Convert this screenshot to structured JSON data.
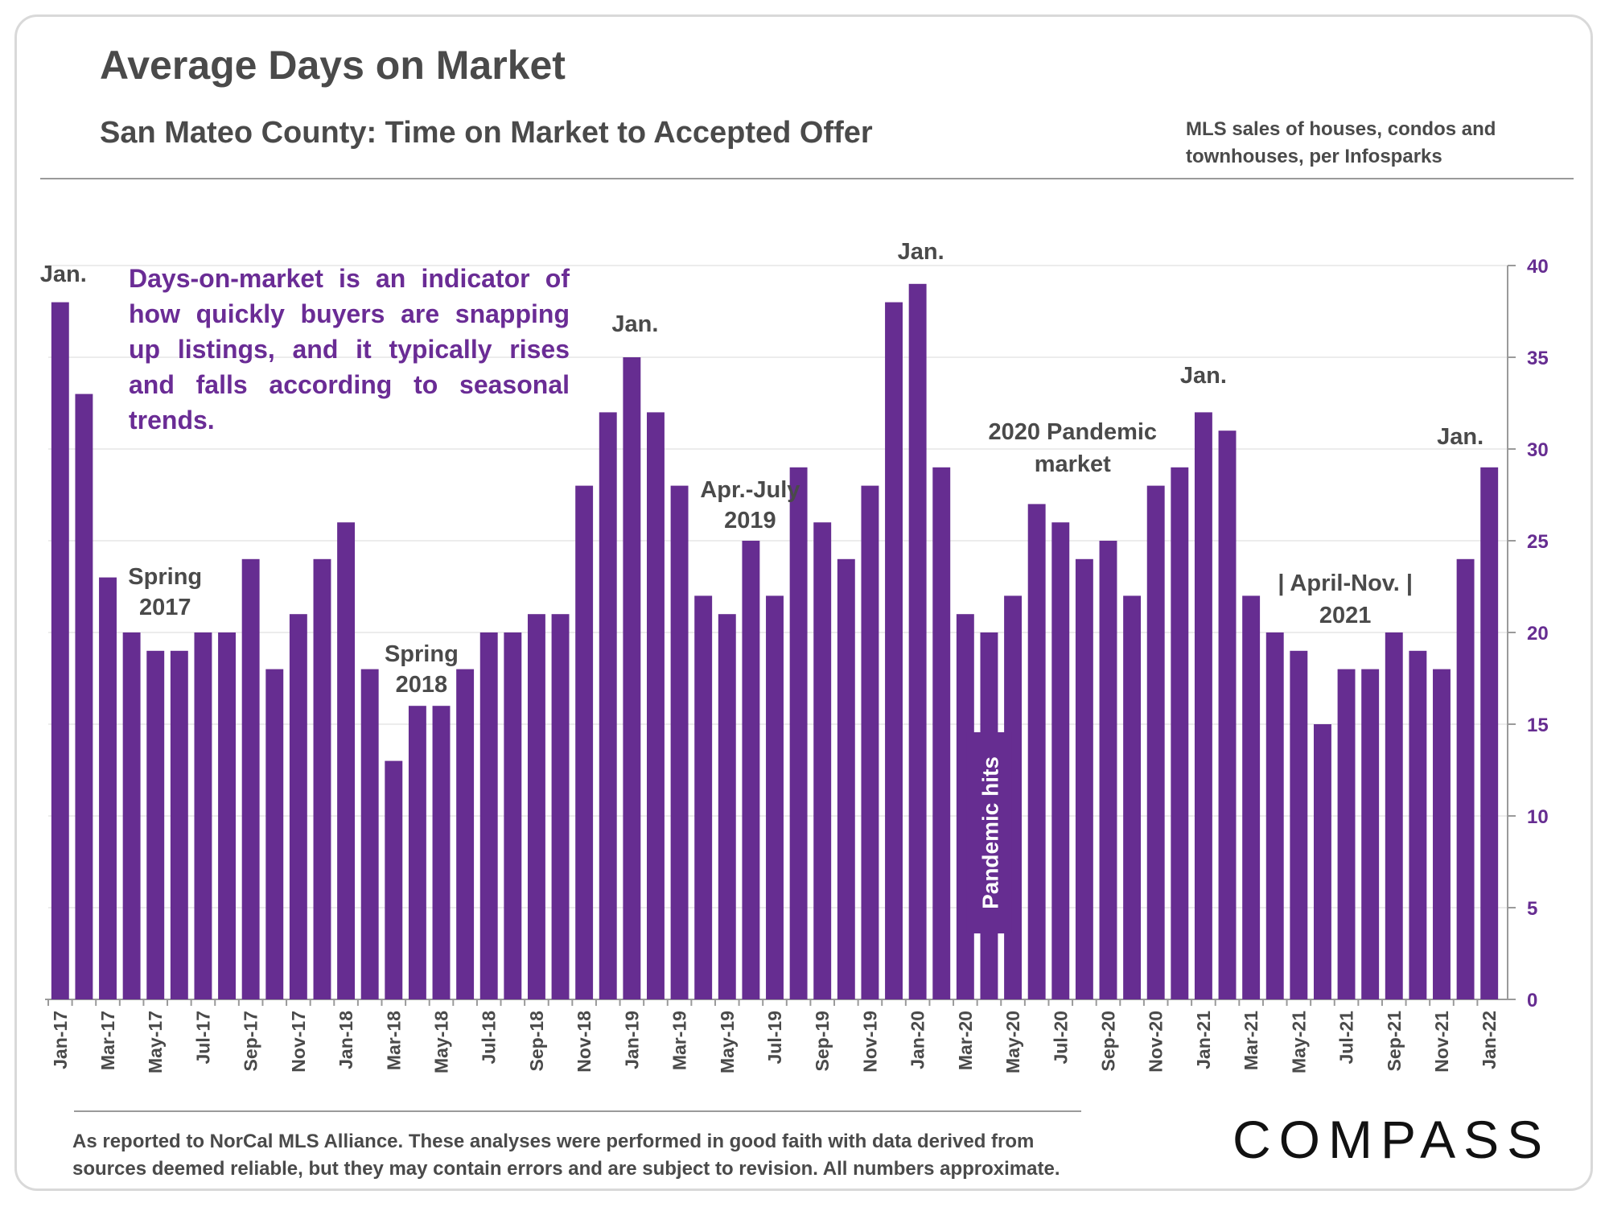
{
  "header": {
    "title": "Average Days on Market",
    "subtitle": "San Mateo County: Time on Market to Accepted Offer",
    "source_line1": "MLS sales of houses, condos and",
    "source_line2": "townhouses, per Infosparks"
  },
  "callout": "Days-on-market is an indicator of how quickly buyers are snapping up listings, and it typically rises and falls according to seasonal trends.",
  "footer": {
    "line1": "As reported to NorCal MLS Alliance. These analyses were performed in good faith with data derived from",
    "line2": "sources deemed reliable, but they may contain errors and are subject to revision. All numbers approximate."
  },
  "logo": "COMPASS",
  "colors": {
    "bar": "#662d91",
    "label": "#4a4a4a",
    "callout": "#6a2c95",
    "grid": "#ececec"
  },
  "chart_data": {
    "type": "bar",
    "title": "Average Days on Market",
    "subtitle": "San Mateo County: Time on Market to Accepted Offer",
    "xlabel": "",
    "ylabel": "",
    "y_axis_side": "right",
    "ylim": [
      0,
      40
    ],
    "yticks": [
      0,
      5,
      10,
      15,
      20,
      25,
      30,
      35,
      40
    ],
    "grid": true,
    "categories": [
      "Jan-17",
      "Feb-17",
      "Mar-17",
      "Apr-17",
      "May-17",
      "Jun-17",
      "Jul-17",
      "Aug-17",
      "Sep-17",
      "Oct-17",
      "Nov-17",
      "Dec-17",
      "Jan-18",
      "Feb-18",
      "Mar-18",
      "Apr-18",
      "May-18",
      "Jun-18",
      "Jul-18",
      "Aug-18",
      "Sep-18",
      "Oct-18",
      "Nov-18",
      "Dec-18",
      "Jan-19",
      "Feb-19",
      "Mar-19",
      "Apr-19",
      "May-19",
      "Jun-19",
      "Jul-19",
      "Aug-19",
      "Sep-19",
      "Oct-19",
      "Nov-19",
      "Dec-19",
      "Jan-20",
      "Feb-20",
      "Mar-20",
      "Apr-20",
      "May-20",
      "Jun-20",
      "Jul-20",
      "Aug-20",
      "Sep-20",
      "Oct-20",
      "Nov-20",
      "Dec-20",
      "Jan-21",
      "Feb-21",
      "Mar-21",
      "Apr-21",
      "May-21",
      "Jun-21",
      "Jul-21",
      "Aug-21",
      "Sep-21",
      "Oct-21",
      "Nov-21",
      "Dec-21",
      "Jan-22"
    ],
    "tick_labels_every": 2,
    "values": [
      38,
      33,
      23,
      20,
      19,
      19,
      20,
      20,
      24,
      18,
      21,
      24,
      26,
      18,
      13,
      16,
      16,
      18,
      20,
      20,
      21,
      21,
      28,
      32,
      35,
      32,
      28,
      22,
      21,
      25,
      22,
      29,
      26,
      24,
      28,
      38,
      39,
      29,
      21,
      20,
      22,
      27,
      26,
      24,
      25,
      22,
      28,
      29,
      32,
      31,
      22,
      20,
      19,
      15,
      18,
      18,
      20,
      19,
      18,
      24,
      29
    ],
    "annotations": [
      {
        "text": "Jan.",
        "at": "Jan-17"
      },
      {
        "text": "Spring",
        "text2": "2017",
        "at": "May-17"
      },
      {
        "text": "Spring",
        "text2": "2018",
        "at": "Apr-18"
      },
      {
        "text": "Jan.",
        "at": "Jan-19"
      },
      {
        "text": "Apr.-July",
        "text2": "2019",
        "at": "Jun-19"
      },
      {
        "text": "Jan.",
        "at": "Jan-20"
      },
      {
        "text": "Pandemic hits",
        "at": "Apr-20",
        "style": "vertical-box"
      },
      {
        "text": "2020 Pandemic",
        "text2": "market",
        "at": "Jul-20"
      },
      {
        "text": "Jan.",
        "at": "Jan-21"
      },
      {
        "text": "| April-Nov. |",
        "text2": "2021",
        "at": "Aug-21"
      },
      {
        "text": "Jan.",
        "at": "Jan-22"
      }
    ]
  }
}
